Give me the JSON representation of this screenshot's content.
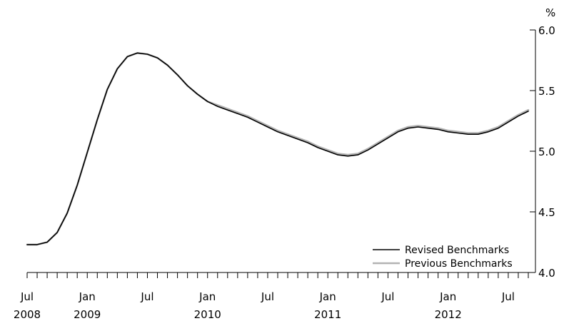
{
  "chart_data": {
    "type": "line",
    "title": "",
    "xlabel": "",
    "ylabel": "%",
    "ylim": [
      4.0,
      6.0
    ],
    "yticks": [
      4.0,
      4.5,
      5.0,
      5.5,
      6.0
    ],
    "ytick_labels": [
      "4.0",
      "4.5",
      "5.0",
      "5.5",
      "6.0"
    ],
    "grid": false,
    "legend_position": "bottom-right",
    "x_range": [
      "2008-07",
      "2012-09"
    ],
    "x_tick_labels": [
      {
        "date": "2008-07",
        "month": "Jul",
        "year": "2008"
      },
      {
        "date": "2009-01",
        "month": "Jan",
        "year": "2009"
      },
      {
        "date": "2009-07",
        "month": "Jul",
        "year": ""
      },
      {
        "date": "2010-01",
        "month": "Jan",
        "year": "2010"
      },
      {
        "date": "2010-07",
        "month": "Jul",
        "year": ""
      },
      {
        "date": "2011-01",
        "month": "Jan",
        "year": "2011"
      },
      {
        "date": "2011-07",
        "month": "Jul",
        "year": ""
      },
      {
        "date": "2012-01",
        "month": "Jan",
        "year": "2012"
      },
      {
        "date": "2012-07",
        "month": "Jul",
        "year": ""
      }
    ],
    "x": [
      "2008-07",
      "2008-08",
      "2008-09",
      "2008-10",
      "2008-11",
      "2008-12",
      "2009-01",
      "2009-02",
      "2009-03",
      "2009-04",
      "2009-05",
      "2009-06",
      "2009-07",
      "2009-08",
      "2009-09",
      "2009-10",
      "2009-11",
      "2009-12",
      "2010-01",
      "2010-02",
      "2010-03",
      "2010-04",
      "2010-05",
      "2010-06",
      "2010-07",
      "2010-08",
      "2010-09",
      "2010-10",
      "2010-11",
      "2010-12",
      "2011-01",
      "2011-02",
      "2011-03",
      "2011-04",
      "2011-05",
      "2011-06",
      "2011-07",
      "2011-08",
      "2011-09",
      "2011-10",
      "2011-11",
      "2011-12",
      "2012-01",
      "2012-02",
      "2012-03",
      "2012-04",
      "2012-05",
      "2012-06",
      "2012-07",
      "2012-08",
      "2012-09"
    ],
    "series": [
      {
        "name": "Revised Benchmarks",
        "color": "#000000",
        "values": [
          4.23,
          4.23,
          4.25,
          4.33,
          4.49,
          4.72,
          4.99,
          5.26,
          5.51,
          5.68,
          5.78,
          5.81,
          5.8,
          5.77,
          5.71,
          5.63,
          5.54,
          5.47,
          5.41,
          5.37,
          5.34,
          5.31,
          5.28,
          5.24,
          5.2,
          5.16,
          5.13,
          5.1,
          5.07,
          5.03,
          5.0,
          4.97,
          4.96,
          4.97,
          5.01,
          5.06,
          5.11,
          5.16,
          5.19,
          5.2,
          5.19,
          5.18,
          5.16,
          5.15,
          5.14,
          5.14,
          5.16,
          5.19,
          5.24,
          5.29,
          5.33
        ]
      },
      {
        "name": "Previous Benchmarks",
        "color": "#b3b3b3",
        "values": [
          4.23,
          4.23,
          4.25,
          4.33,
          4.49,
          4.72,
          4.99,
          5.26,
          5.51,
          5.68,
          5.78,
          5.81,
          5.8,
          5.77,
          5.71,
          5.63,
          5.54,
          5.47,
          5.41,
          5.38,
          5.35,
          5.32,
          5.29,
          5.25,
          5.21,
          5.17,
          5.14,
          5.11,
          5.08,
          5.04,
          5.01,
          4.98,
          4.97,
          4.98,
          5.02,
          5.07,
          5.12,
          5.17,
          5.2,
          5.21,
          5.2,
          5.19,
          5.17,
          5.16,
          5.15,
          5.15,
          5.17,
          5.2,
          5.25,
          5.3,
          5.34
        ]
      }
    ]
  }
}
